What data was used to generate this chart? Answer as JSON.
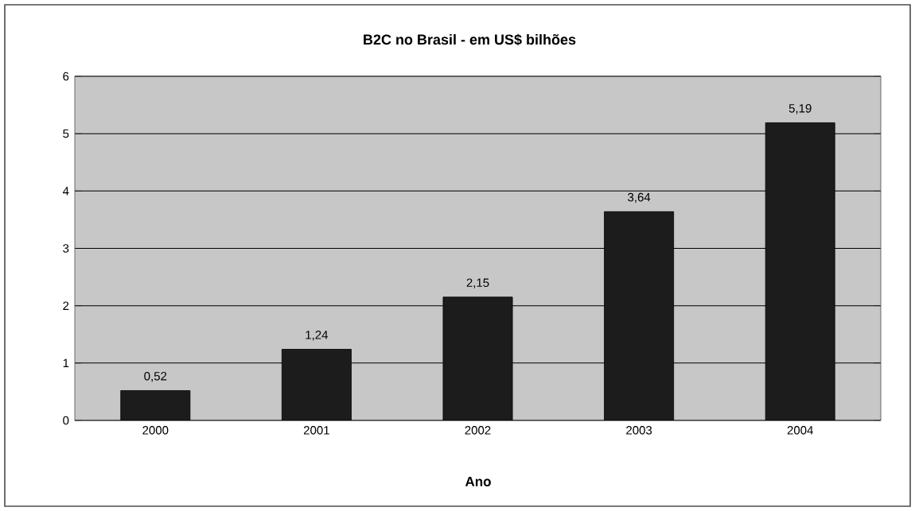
{
  "chart_data": {
    "type": "bar",
    "title": "B2C no Brasil - em US$ bilhões",
    "xlabel": "Ano",
    "categories": [
      "2000",
      "2001",
      "2002",
      "2003",
      "2004"
    ],
    "values": [
      0.52,
      1.24,
      2.15,
      3.64,
      5.19
    ],
    "value_labels": [
      "0,52",
      "1,24",
      "2,15",
      "3,64",
      "5,19"
    ],
    "color": "#1c1c1c",
    "ylim": [
      0,
      6
    ],
    "yticks": [
      0,
      1,
      2,
      3,
      4,
      5,
      6
    ],
    "grid": "y"
  }
}
